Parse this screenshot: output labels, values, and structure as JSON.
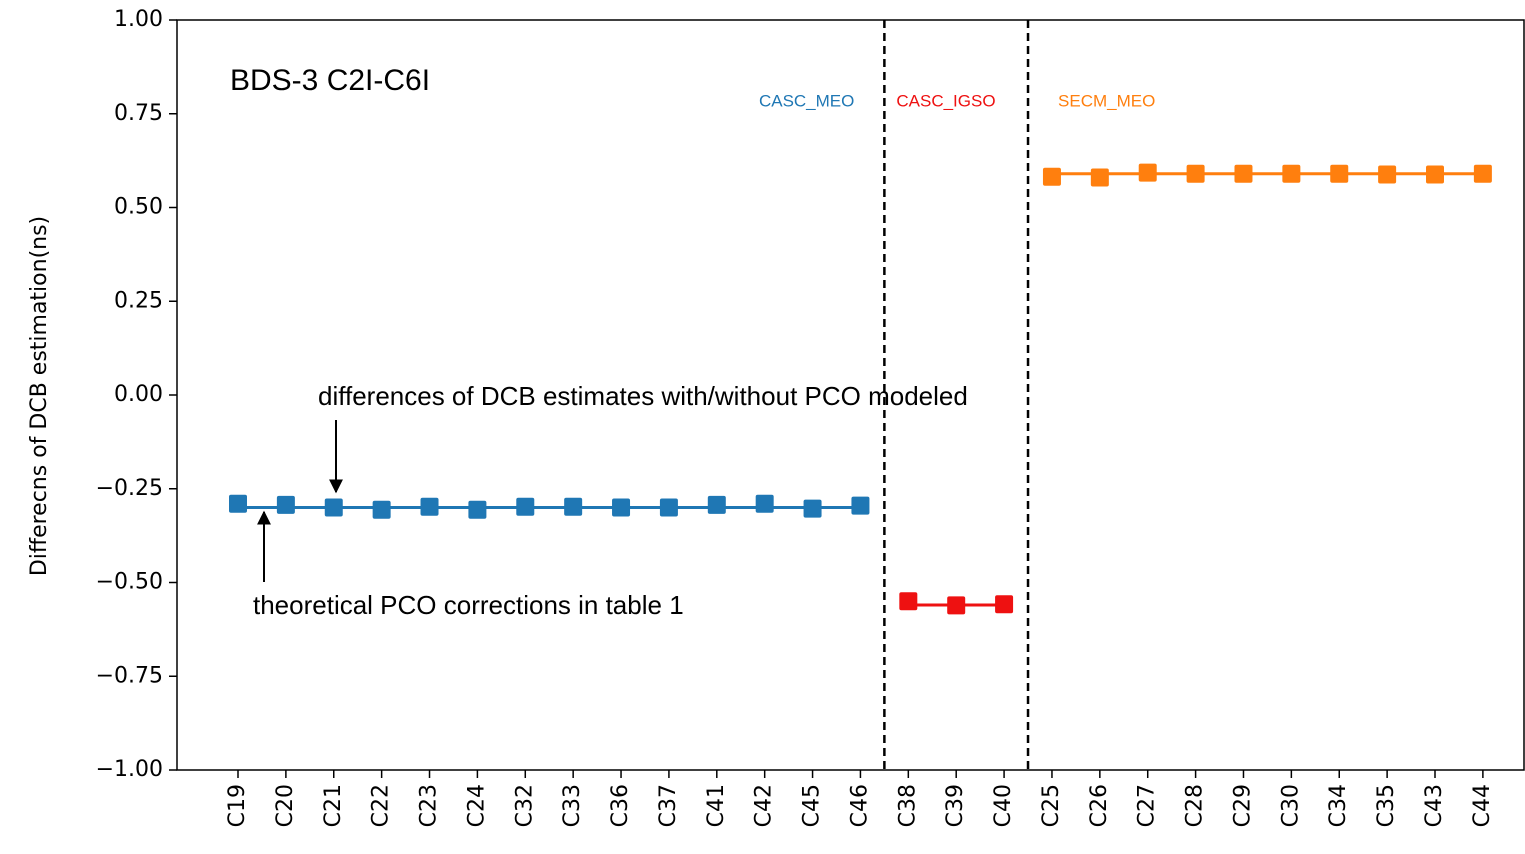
{
  "chart_data": {
    "type": "line",
    "title": "BDS-3 C2I-C6I",
    "y_label": "Differecns of DCB estimation(ns)",
    "categories": [
      "C19",
      "C20",
      "C21",
      "C22",
      "C23",
      "C24",
      "C32",
      "C33",
      "C36",
      "C37",
      "C41",
      "C42",
      "C45",
      "C46",
      "C38",
      "C39",
      "C40",
      "C25",
      "C26",
      "C27",
      "C28",
      "C29",
      "C30",
      "C34",
      "C35",
      "C43",
      "C44"
    ],
    "series": [
      {
        "name": "CASC_MEO",
        "color": "#1f77b4",
        "theoretical": -0.3,
        "values": [
          -0.29,
          -0.293,
          -0.3,
          -0.306,
          -0.298,
          -0.306,
          -0.298,
          -0.298,
          -0.3,
          -0.3,
          -0.293,
          -0.29,
          -0.303,
          -0.295,
          null,
          null,
          null,
          null,
          null,
          null,
          null,
          null,
          null,
          null,
          null,
          null,
          null
        ]
      },
      {
        "name": "CASC_IGSO",
        "color": "#ee1111",
        "theoretical": -0.56,
        "values": [
          null,
          null,
          null,
          null,
          null,
          null,
          null,
          null,
          null,
          null,
          null,
          null,
          null,
          null,
          -0.55,
          -0.561,
          -0.558,
          null,
          null,
          null,
          null,
          null,
          null,
          null,
          null,
          null,
          null
        ]
      },
      {
        "name": "SECM_MEO",
        "color": "#ff7f0e",
        "theoretical": 0.59,
        "values": [
          null,
          null,
          null,
          null,
          null,
          null,
          null,
          null,
          null,
          null,
          null,
          null,
          null,
          null,
          null,
          null,
          null,
          0.582,
          0.58,
          0.593,
          0.59,
          0.59,
          0.59,
          0.59,
          0.588,
          0.588,
          0.59
        ]
      }
    ],
    "annotations": [
      "differences of DCB estimates with/without PCO modeled",
      "theoretical PCO corrections in table 1"
    ],
    "ylim": [
      -1.0,
      1.0
    ],
    "yticks": [
      {
        "value": 1.0,
        "label": "1.00"
      },
      {
        "value": 0.75,
        "label": "0.75"
      },
      {
        "value": 0.5,
        "label": "0.50"
      },
      {
        "value": 0.25,
        "label": "0.25"
      },
      {
        "value": 0,
        "label": "0.00"
      },
      {
        "value": -0.25,
        "label": "−0.25"
      },
      {
        "value": -0.5,
        "label": "−0.50"
      },
      {
        "value": -0.75,
        "label": "−0.75"
      },
      {
        "value": -1.0,
        "label": "−1.00"
      }
    ],
    "grid": false
  }
}
